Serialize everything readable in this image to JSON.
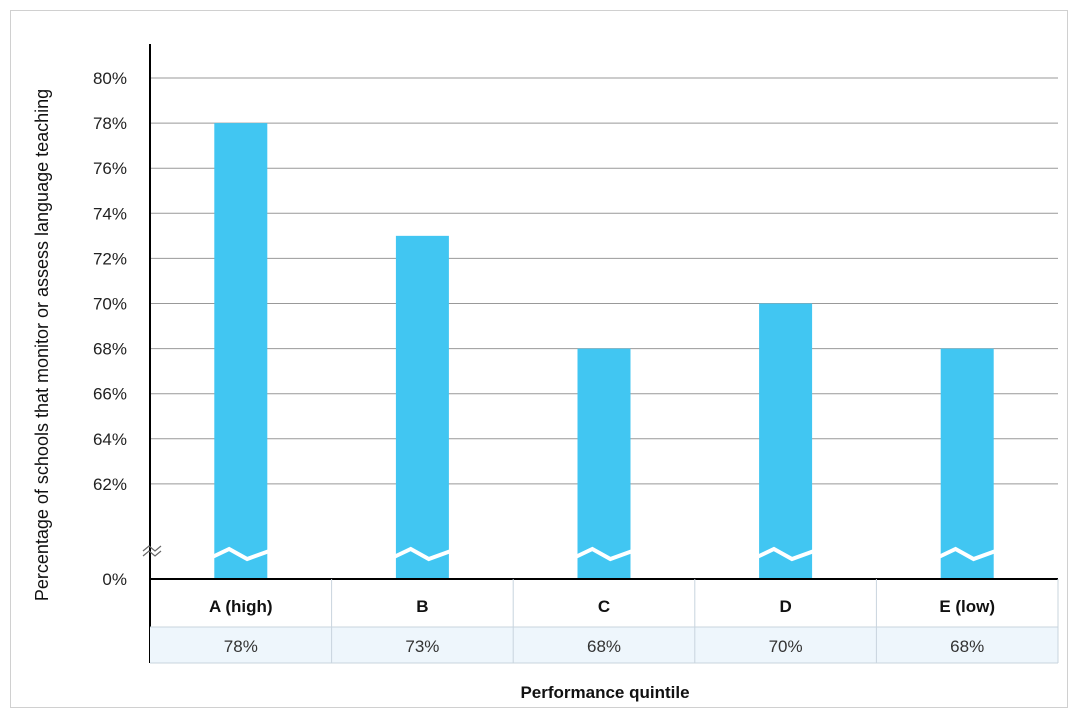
{
  "chart_data": {
    "type": "bar",
    "categories": [
      "A (high)",
      "B",
      "C",
      "D",
      "E (low)"
    ],
    "values": [
      78,
      73,
      68,
      70,
      68
    ],
    "value_labels": [
      "78%",
      "73%",
      "68%",
      "70%",
      "68%"
    ],
    "y_ticks": [
      {
        "value": 0,
        "label": "0%"
      },
      {
        "value": 62,
        "label": "62%"
      },
      {
        "value": 64,
        "label": "64%"
      },
      {
        "value": 66,
        "label": "66%"
      },
      {
        "value": 68,
        "label": "68%"
      },
      {
        "value": 70,
        "label": "70%"
      },
      {
        "value": 72,
        "label": "72%"
      },
      {
        "value": 74,
        "label": "74%"
      },
      {
        "value": 76,
        "label": "76%"
      },
      {
        "value": 78,
        "label": "78%"
      },
      {
        "value": 80,
        "label": "80%"
      }
    ],
    "ylim": [
      60,
      80
    ],
    "y_axis_break": true,
    "xlabel": "Performance quintile",
    "ylabel": "Percentage of schools that monitor or assess language teaching",
    "grid": true,
    "colors": {
      "bar": "#41c6f2",
      "grid": "#999999",
      "axis": "#000000",
      "table_border": "#c8d4de",
      "value_row_bg": "#eef6fc"
    }
  }
}
